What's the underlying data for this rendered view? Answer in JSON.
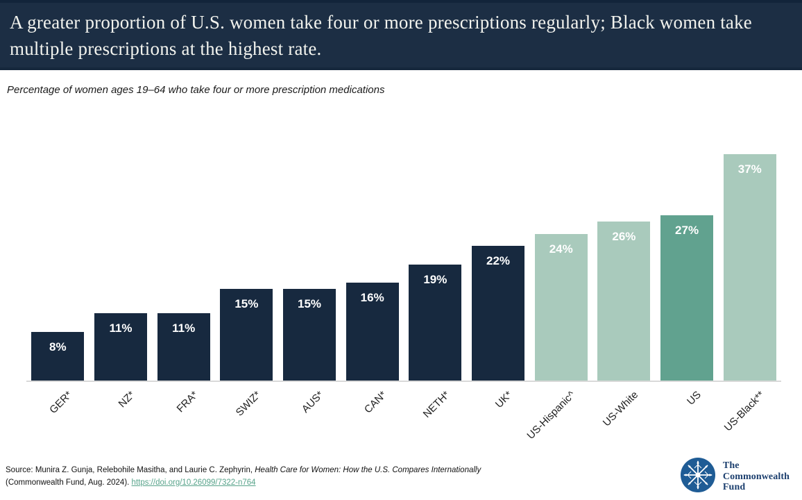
{
  "header": {
    "title": "A greater proportion of U.S. women take four or more prescriptions regularly; Black women take multiple prescriptions at the highest rate.",
    "bg_color": "#1c2e44",
    "text_color": "#f2f3ee"
  },
  "subtitle": "Percentage of women ages 19–64 who take four or more prescription medications",
  "chart_data": {
    "type": "bar",
    "categories": [
      "GER*",
      "NZ*",
      "FRA*",
      "SWIZ*",
      "AUS*",
      "CAN*",
      "NETH*",
      "UK*",
      "US-Hispanic^",
      "US-White",
      "US",
      "US-Black**"
    ],
    "values": [
      8,
      11,
      11,
      15,
      15,
      16,
      19,
      22,
      24,
      26,
      27,
      37
    ],
    "value_labels": [
      "8%",
      "11%",
      "11%",
      "15%",
      "15%",
      "16%",
      "19%",
      "22%",
      "24%",
      "26%",
      "27%",
      "37%"
    ],
    "bar_colors": [
      "#17293f",
      "#17293f",
      "#17293f",
      "#17293f",
      "#17293f",
      "#17293f",
      "#17293f",
      "#17293f",
      "#a9cabc",
      "#a9cabc",
      "#61a28f",
      "#a9cabc"
    ],
    "title": "",
    "xlabel": "",
    "ylabel": "",
    "ylim": [
      0,
      40
    ],
    "grid": false,
    "legend": "none",
    "value_label_position": "inside-top",
    "value_label_color": "#ffffff",
    "axis_line_color": "#d9d9d9",
    "x_label_rotation_deg": -45
  },
  "footer": {
    "source_prefix": "Source: Munira Z. Gunja, Relebohile Masitha, and Laurie C. Zephyrin, ",
    "source_italic": "Health Care for Women: How the U.S. Compares Internationally",
    "source_line2_prefix": "(Commonwealth Fund, Aug. 2024). ",
    "link_text": "https://doi.org/10.26099/7322-n764",
    "link_color": "#57a38a"
  },
  "logo": {
    "line1": "The",
    "line2": "Commonwealth",
    "line3": "Fund",
    "circle_color": "#1f5c95",
    "text_color": "#1c3f6e"
  }
}
